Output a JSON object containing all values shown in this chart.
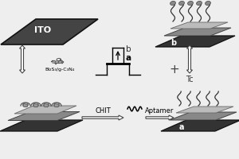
{
  "bg_color": "#eeeeee",
  "ito_label": "ITO",
  "bi_label": "Bi₂S₃/g-C₃N₄",
  "chit_label": "CHIT",
  "aptamer_label": "Aptamer",
  "tc_label": "Tc",
  "label_a": "a",
  "label_b": "b",
  "gray_dark": "#444444",
  "gray_dark2": "#555555",
  "gray_mid": "#888888",
  "gray_light": "#bbbbbb",
  "gray_lighter": "#cccccc",
  "black": "#000000",
  "white": "#ffffff"
}
